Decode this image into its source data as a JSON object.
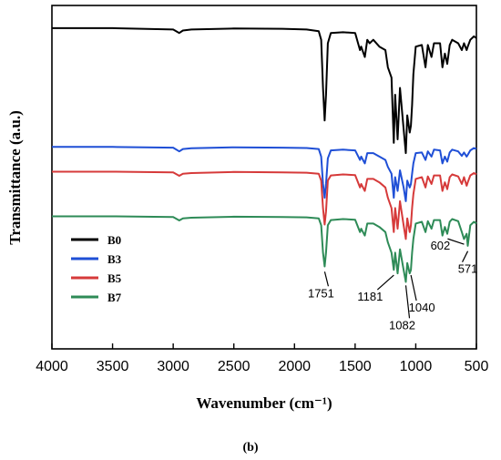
{
  "chart_data": {
    "type": "line",
    "panel_label": "(b)",
    "xlabel": "Wavenumber (cm⁻¹)",
    "ylabel": "Transmittance (a.u.)",
    "xlim": [
      4000,
      500
    ],
    "x_reversed": true,
    "x_ticks": [
      4000,
      3500,
      3000,
      2500,
      2000,
      1500,
      1000,
      500
    ],
    "y_ticks": "none",
    "ylim": [
      0,
      10
    ],
    "grid": false,
    "legend_placement": "bottom-left",
    "series": [
      {
        "name": "B0",
        "color": "#000000",
        "points": [
          [
            4000,
            9.34
          ],
          [
            3500,
            9.34
          ],
          [
            3000,
            9.3
          ],
          [
            2950,
            9.2
          ],
          [
            2920,
            9.27
          ],
          [
            2850,
            9.3
          ],
          [
            2500,
            9.33
          ],
          [
            2100,
            9.32
          ],
          [
            1900,
            9.3
          ],
          [
            1800,
            9.25
          ],
          [
            1780,
            9.0
          ],
          [
            1765,
            7.6
          ],
          [
            1751,
            6.65
          ],
          [
            1740,
            7.4
          ],
          [
            1725,
            8.9
          ],
          [
            1700,
            9.2
          ],
          [
            1600,
            9.22
          ],
          [
            1500,
            9.2
          ],
          [
            1460,
            8.7
          ],
          [
            1450,
            8.8
          ],
          [
            1420,
            8.5
          ],
          [
            1400,
            9.0
          ],
          [
            1380,
            8.9
          ],
          [
            1350,
            9.0
          ],
          [
            1300,
            8.8
          ],
          [
            1250,
            8.7
          ],
          [
            1230,
            8.2
          ],
          [
            1200,
            7.9
          ],
          [
            1181,
            6.0
          ],
          [
            1170,
            7.4
          ],
          [
            1150,
            6.1
          ],
          [
            1130,
            7.6
          ],
          [
            1100,
            6.4
          ],
          [
            1082,
            5.7
          ],
          [
            1070,
            6.8
          ],
          [
            1050,
            6.3
          ],
          [
            1040,
            6.5
          ],
          [
            1030,
            7.1
          ],
          [
            1020,
            8.0
          ],
          [
            1000,
            8.8
          ],
          [
            950,
            8.85
          ],
          [
            920,
            8.2
          ],
          [
            900,
            8.85
          ],
          [
            870,
            8.5
          ],
          [
            850,
            8.9
          ],
          [
            800,
            8.9
          ],
          [
            780,
            8.2
          ],
          [
            760,
            8.6
          ],
          [
            740,
            8.3
          ],
          [
            720,
            8.85
          ],
          [
            700,
            9.0
          ],
          [
            650,
            8.9
          ],
          [
            620,
            8.7
          ],
          [
            602,
            8.9
          ],
          [
            580,
            8.7
          ],
          [
            571,
            8.8
          ],
          [
            550,
            9.0
          ],
          [
            520,
            9.1
          ],
          [
            500,
            9.05
          ]
        ]
      },
      {
        "name": "B3",
        "color": "#1f4fd6",
        "points": [
          [
            4000,
            5.88
          ],
          [
            3500,
            5.88
          ],
          [
            3000,
            5.86
          ],
          [
            2950,
            5.75
          ],
          [
            2920,
            5.82
          ],
          [
            2850,
            5.84
          ],
          [
            2500,
            5.87
          ],
          [
            2100,
            5.86
          ],
          [
            1900,
            5.85
          ],
          [
            1800,
            5.82
          ],
          [
            1780,
            5.6
          ],
          [
            1765,
            4.8
          ],
          [
            1751,
            4.4
          ],
          [
            1740,
            4.8
          ],
          [
            1725,
            5.55
          ],
          [
            1700,
            5.78
          ],
          [
            1600,
            5.8
          ],
          [
            1500,
            5.78
          ],
          [
            1460,
            5.5
          ],
          [
            1450,
            5.6
          ],
          [
            1420,
            5.4
          ],
          [
            1400,
            5.7
          ],
          [
            1350,
            5.7
          ],
          [
            1300,
            5.6
          ],
          [
            1250,
            5.5
          ],
          [
            1230,
            5.3
          ],
          [
            1200,
            5.1
          ],
          [
            1181,
            4.4
          ],
          [
            1170,
            5.0
          ],
          [
            1150,
            4.6
          ],
          [
            1130,
            5.2
          ],
          [
            1100,
            4.7
          ],
          [
            1082,
            4.3
          ],
          [
            1070,
            4.9
          ],
          [
            1050,
            4.7
          ],
          [
            1040,
            4.8
          ],
          [
            1030,
            5.1
          ],
          [
            1020,
            5.4
          ],
          [
            1000,
            5.7
          ],
          [
            950,
            5.72
          ],
          [
            920,
            5.5
          ],
          [
            900,
            5.75
          ],
          [
            870,
            5.6
          ],
          [
            850,
            5.8
          ],
          [
            800,
            5.78
          ],
          [
            780,
            5.4
          ],
          [
            760,
            5.6
          ],
          [
            740,
            5.45
          ],
          [
            720,
            5.72
          ],
          [
            700,
            5.8
          ],
          [
            650,
            5.75
          ],
          [
            620,
            5.62
          ],
          [
            602,
            5.72
          ],
          [
            580,
            5.6
          ],
          [
            571,
            5.65
          ],
          [
            550,
            5.78
          ],
          [
            520,
            5.85
          ],
          [
            500,
            5.82
          ]
        ]
      },
      {
        "name": "B5",
        "color": "#d63a3a",
        "points": [
          [
            4000,
            5.16
          ],
          [
            3500,
            5.16
          ],
          [
            3000,
            5.14
          ],
          [
            2950,
            5.04
          ],
          [
            2920,
            5.1
          ],
          [
            2850,
            5.12
          ],
          [
            2500,
            5.15
          ],
          [
            2100,
            5.14
          ],
          [
            1900,
            5.13
          ],
          [
            1800,
            5.1
          ],
          [
            1780,
            4.9
          ],
          [
            1765,
            4.1
          ],
          [
            1751,
            3.62
          ],
          [
            1740,
            4.0
          ],
          [
            1725,
            4.9
          ],
          [
            1700,
            5.05
          ],
          [
            1600,
            5.08
          ],
          [
            1500,
            5.06
          ],
          [
            1460,
            4.7
          ],
          [
            1450,
            4.8
          ],
          [
            1420,
            4.6
          ],
          [
            1400,
            4.95
          ],
          [
            1350,
            4.95
          ],
          [
            1300,
            4.85
          ],
          [
            1250,
            4.7
          ],
          [
            1230,
            4.4
          ],
          [
            1200,
            4.1
          ],
          [
            1181,
            3.4
          ],
          [
            1170,
            4.1
          ],
          [
            1150,
            3.5
          ],
          [
            1130,
            4.3
          ],
          [
            1100,
            3.6
          ],
          [
            1082,
            3.2
          ],
          [
            1070,
            3.8
          ],
          [
            1050,
            3.4
          ],
          [
            1040,
            3.6
          ],
          [
            1030,
            4.1
          ],
          [
            1020,
            4.5
          ],
          [
            1000,
            4.95
          ],
          [
            950,
            5.0
          ],
          [
            920,
            4.7
          ],
          [
            900,
            5.02
          ],
          [
            870,
            4.8
          ],
          [
            850,
            5.05
          ],
          [
            800,
            5.05
          ],
          [
            780,
            4.6
          ],
          [
            760,
            4.85
          ],
          [
            740,
            4.65
          ],
          [
            720,
            5.0
          ],
          [
            700,
            5.08
          ],
          [
            650,
            5.02
          ],
          [
            620,
            4.8
          ],
          [
            602,
            5.0
          ],
          [
            580,
            4.75
          ],
          [
            571,
            4.85
          ],
          [
            550,
            5.05
          ],
          [
            520,
            5.12
          ],
          [
            500,
            5.08
          ]
        ]
      },
      {
        "name": "B7",
        "color": "#2e8b57",
        "points": [
          [
            4000,
            3.86
          ],
          [
            3500,
            3.86
          ],
          [
            3000,
            3.84
          ],
          [
            2950,
            3.74
          ],
          [
            2920,
            3.8
          ],
          [
            2850,
            3.82
          ],
          [
            2500,
            3.85
          ],
          [
            2100,
            3.84
          ],
          [
            1900,
            3.83
          ],
          [
            1800,
            3.8
          ],
          [
            1780,
            3.6
          ],
          [
            1765,
            2.8
          ],
          [
            1751,
            2.4
          ],
          [
            1740,
            2.8
          ],
          [
            1725,
            3.6
          ],
          [
            1700,
            3.75
          ],
          [
            1600,
            3.78
          ],
          [
            1500,
            3.76
          ],
          [
            1460,
            3.4
          ],
          [
            1450,
            3.5
          ],
          [
            1420,
            3.3
          ],
          [
            1400,
            3.65
          ],
          [
            1350,
            3.65
          ],
          [
            1300,
            3.55
          ],
          [
            1250,
            3.4
          ],
          [
            1230,
            3.1
          ],
          [
            1200,
            2.8
          ],
          [
            1181,
            2.3
          ],
          [
            1170,
            2.8
          ],
          [
            1150,
            2.2
          ],
          [
            1130,
            2.9
          ],
          [
            1100,
            2.3
          ],
          [
            1082,
            1.95
          ],
          [
            1070,
            2.5
          ],
          [
            1050,
            2.2
          ],
          [
            1040,
            2.3
          ],
          [
            1030,
            2.8
          ],
          [
            1020,
            3.2
          ],
          [
            1000,
            3.65
          ],
          [
            950,
            3.7
          ],
          [
            920,
            3.4
          ],
          [
            900,
            3.72
          ],
          [
            870,
            3.5
          ],
          [
            850,
            3.75
          ],
          [
            800,
            3.75
          ],
          [
            780,
            3.3
          ],
          [
            760,
            3.55
          ],
          [
            740,
            3.35
          ],
          [
            720,
            3.7
          ],
          [
            700,
            3.78
          ],
          [
            650,
            3.72
          ],
          [
            620,
            3.4
          ],
          [
            602,
            3.2
          ],
          [
            580,
            3.35
          ],
          [
            571,
            3.0
          ],
          [
            550,
            3.6
          ],
          [
            520,
            3.7
          ],
          [
            500,
            3.65
          ]
        ]
      }
    ],
    "annotations": [
      {
        "text": "1751",
        "x": 1751,
        "y": 2.3
      },
      {
        "text": "1181",
        "x": 1181,
        "y": 2.2
      },
      {
        "text": "1082",
        "x": 1082,
        "y": 1.9
      },
      {
        "text": "1040",
        "x": 1040,
        "y": 2.2
      },
      {
        "text": "602",
        "x": 602,
        "y": 3.1
      },
      {
        "text": "571",
        "x": 571,
        "y": 2.9
      }
    ]
  }
}
